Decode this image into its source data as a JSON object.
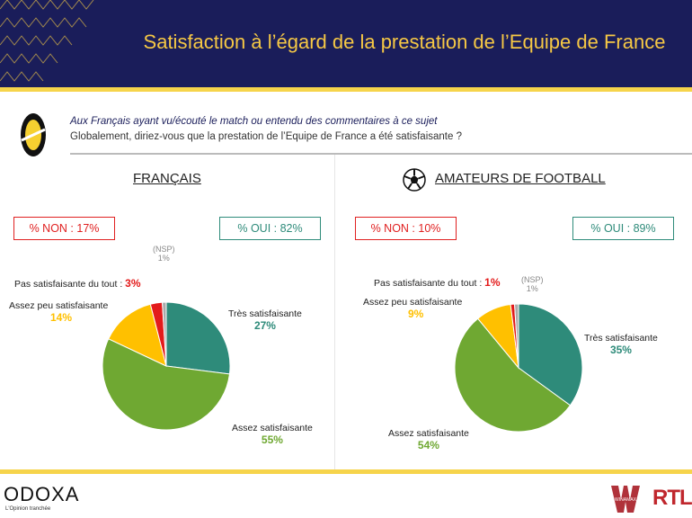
{
  "header": {
    "title": "Satisfaction à l’égard de la prestation de l’Equipe de France"
  },
  "question": {
    "population": "Aux Français ayant vu/écouté le match ou entendu des commentaires à ce sujet",
    "text": "Globalement, diriez-vous que la prestation de l’Equipe de France a été satisfaisante ?"
  },
  "footer": {
    "brand": "ODOXA",
    "tagline": "L'Opinion tranchée",
    "partner1": "WINAMAX",
    "partner2": "RTL"
  },
  "colors": {
    "tres": "#2e8b7a",
    "assez": "#6fa832",
    "peu": "#ffc000",
    "pas": "#e31b1b",
    "nsp": "#aaaaaa"
  },
  "chart_data": [
    {
      "type": "pie",
      "title": "FRANÇAIS",
      "non_label": "% NON : 17%",
      "oui_label": "% OUI : 82%",
      "labels": [
        "Très satisfaisante",
        "Assez satisfaisante",
        "Assez peu satisfaisante",
        "Pas satisfaisante du tout :",
        "(NSP)"
      ],
      "values": [
        27,
        55,
        14,
        3,
        1
      ],
      "value_labels": [
        "27%",
        "55%",
        "14%",
        "3%",
        "1%"
      ]
    },
    {
      "type": "pie",
      "title": "AMATEURS DE FOOTBALL",
      "non_label": "% NON : 10%",
      "oui_label": "% OUI : 89%",
      "labels": [
        "Très satisfaisante",
        "Assez satisfaisante",
        "Assez peu satisfaisante",
        "Pas satisfaisante du tout :",
        "(NSP)"
      ],
      "values": [
        35,
        54,
        9,
        1,
        1
      ],
      "value_labels": [
        "35%",
        "54%",
        "9%",
        "1%",
        "1%"
      ]
    }
  ]
}
